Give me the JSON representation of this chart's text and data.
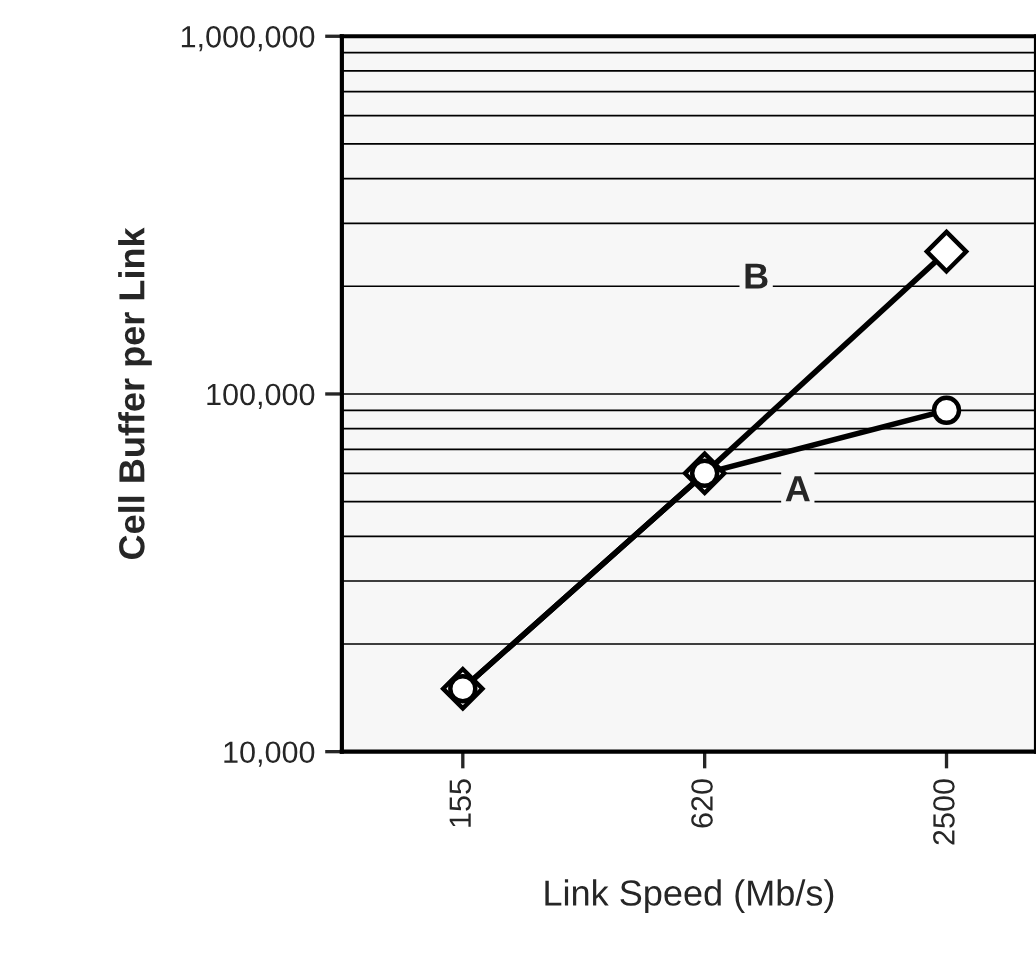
{
  "chart_data": {
    "type": "line",
    "xlabel": "Link Speed (Mb/s)",
    "ylabel": "Cell Buffer per Link",
    "categories": [
      "155",
      "620",
      "2500"
    ],
    "series": [
      {
        "name": "A",
        "color": "#000000",
        "marker": "circle",
        "values": [
          15000,
          60000,
          90000
        ]
      },
      {
        "name": "B",
        "color": "#000000",
        "marker": "diamond",
        "values": [
          15000,
          60000,
          250000
        ]
      }
    ],
    "log": "y",
    "ylim": [
      10000,
      1000000
    ],
    "yticks": [
      {
        "value": 10000,
        "label": "10,000"
      },
      {
        "value": 100000,
        "label": "100,000"
      },
      {
        "value": 1000000,
        "label": "1,000,000"
      }
    ],
    "grid": "y",
    "legend": false
  }
}
